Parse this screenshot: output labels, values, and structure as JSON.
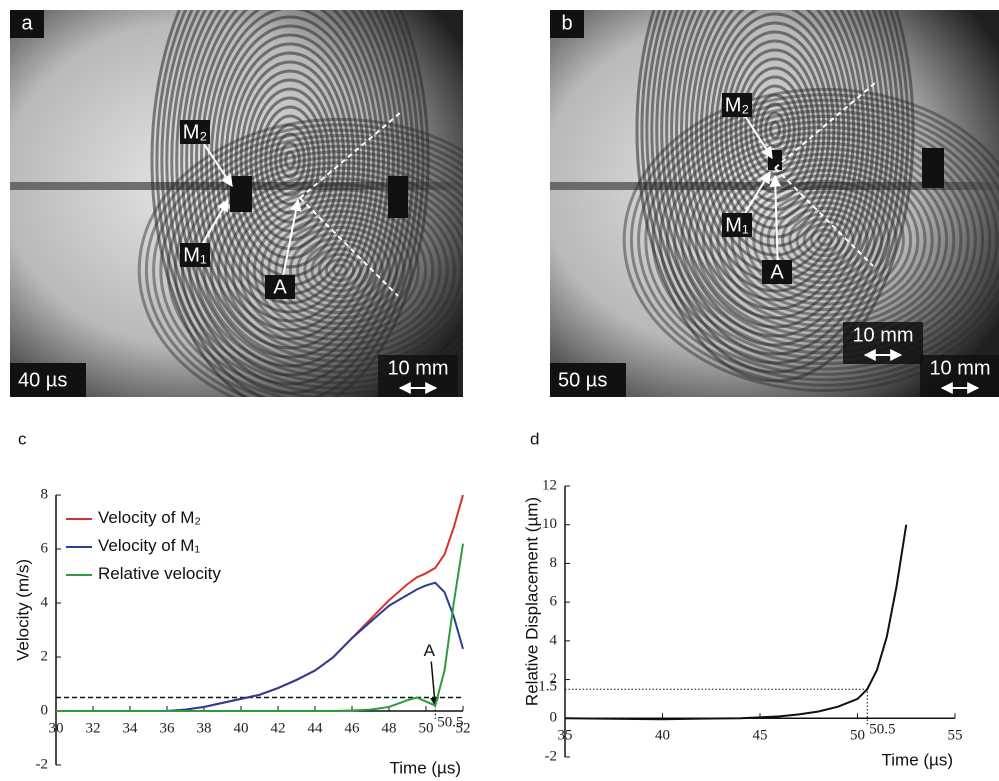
{
  "panels": [
    {
      "label": "a",
      "time": "40 µs",
      "scales": [
        "10 mm"
      ],
      "markers": [
        "M₂",
        "M₁",
        "A"
      ]
    },
    {
      "label": "b",
      "time": "50 µs",
      "scales": [
        "10 mm",
        "10 mm"
      ],
      "markers": [
        "M₂",
        "M₁",
        "A"
      ]
    }
  ],
  "chart_data": [
    {
      "type": "line",
      "panel_label": "c",
      "xlabel": "Time (µs)",
      "ylabel": "Velocity (m/s)",
      "xlim": [
        30,
        52
      ],
      "xticks": [
        30,
        32,
        34,
        36,
        38,
        40,
        42,
        44,
        46,
        48,
        50,
        52
      ],
      "ylim": [
        -2,
        8
      ],
      "yticks": [
        -2,
        0,
        2,
        4,
        6,
        8
      ],
      "x": [
        30,
        32,
        34,
        36,
        37,
        38,
        39,
        40,
        41,
        42,
        43,
        44,
        45,
        46,
        47,
        48,
        49,
        49.5,
        50,
        50.5,
        51,
        51.5,
        52
      ],
      "series": [
        {
          "name": "Velocity of M₂",
          "color": "#d9302b",
          "values": [
            0,
            0,
            0,
            0,
            0.05,
            0.15,
            0.3,
            0.45,
            0.6,
            0.85,
            1.15,
            1.5,
            2.0,
            2.7,
            3.4,
            4.1,
            4.7,
            4.95,
            5.1,
            5.3,
            5.8,
            6.8,
            8
          ]
        },
        {
          "name": "Velocity of M₁",
          "color": "#2c3e92",
          "values": [
            0,
            0,
            0,
            0,
            0.05,
            0.15,
            0.3,
            0.45,
            0.6,
            0.85,
            1.15,
            1.5,
            2.0,
            2.7,
            3.3,
            3.9,
            4.3,
            4.5,
            4.65,
            4.75,
            4.4,
            3.5,
            2.3
          ]
        },
        {
          "name": "Relative velocity",
          "color": "#2e9a3e",
          "values": [
            0,
            0,
            0,
            0,
            0,
            0,
            0,
            0,
            0,
            0,
            0,
            0,
            0,
            0.02,
            0.05,
            0.15,
            0.4,
            0.5,
            0.35,
            0.2,
            1.5,
            4,
            6.2
          ]
        }
      ],
      "threshold": 0.5,
      "annotation": {
        "text": "A",
        "x": 50.5,
        "y": 0.2
      },
      "marker_x": {
        "value": 50.5,
        "label": "50.5"
      },
      "legend": "upper left"
    },
    {
      "type": "line",
      "panel_label": "d",
      "xlabel": "Time (µs)",
      "ylabel": "Relative Displacement (µm)",
      "xlim": [
        35,
        55
      ],
      "xticks": [
        35,
        40,
        45,
        50,
        55
      ],
      "ylim": [
        -2,
        12
      ],
      "yticks": [
        -2,
        0,
        2,
        4,
        6,
        8,
        10,
        12
      ],
      "x": [
        35,
        40,
        42,
        44,
        45,
        46,
        47,
        48,
        49,
        50,
        50.5,
        51,
        51.5,
        52,
        52.5
      ],
      "series": [
        {
          "name": null,
          "color": "#111111",
          "values": [
            0,
            -0.05,
            -0.02,
            0,
            0.05,
            0.1,
            0.2,
            0.35,
            0.6,
            1.0,
            1.5,
            2.5,
            4.2,
            6.8,
            10
          ]
        }
      ],
      "reference": {
        "x": {
          "value": 50.5,
          "label": "50.5"
        },
        "y": {
          "value": 1.5,
          "label": "1.5"
        }
      }
    }
  ]
}
